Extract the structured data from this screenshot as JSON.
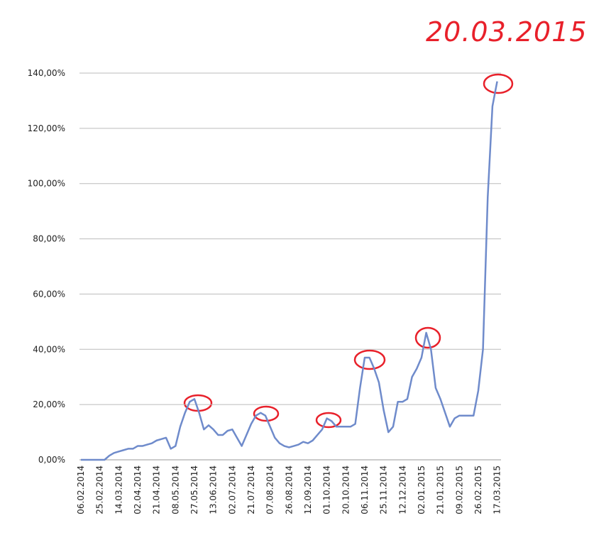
{
  "chart_data": {
    "type": "line",
    "annotation": "20.03.2015",
    "categories": [
      "06.02.2014",
      null,
      null,
      null,
      "25.02.2014",
      null,
      null,
      null,
      "14.03.2014",
      null,
      null,
      null,
      "02.04.2014",
      null,
      null,
      null,
      "21.04.2014",
      null,
      null,
      null,
      "08.05.2014",
      null,
      null,
      null,
      "27.05.2014",
      null,
      null,
      null,
      "13.06.2014",
      null,
      null,
      null,
      "02.07.2014",
      null,
      null,
      null,
      "21.07.2014",
      null,
      null,
      null,
      "07.08.2014",
      null,
      null,
      null,
      "26.08.2014",
      null,
      null,
      null,
      "12.09.2014",
      null,
      null,
      null,
      "01.10.2014",
      null,
      null,
      null,
      "20.10.2014",
      null,
      null,
      null,
      "06.11.2014",
      null,
      null,
      null,
      "25.11.2014",
      null,
      null,
      null,
      "12.12.2014",
      null,
      null,
      null,
      "02.01.2015",
      null,
      null,
      null,
      "21.01.2015",
      null,
      null,
      null,
      "09.02.2015",
      null,
      null,
      null,
      "26.02.2015",
      null,
      null,
      null,
      "17.03.2015"
    ],
    "series": [
      {
        "color": "#6f8bcb",
        "values": [
          0,
          0,
          0,
          0,
          0,
          0,
          1.5,
          2.5,
          3,
          3.5,
          4,
          4,
          5,
          5,
          5.5,
          6,
          7,
          7.5,
          8,
          4,
          5,
          12,
          17,
          21,
          22,
          17,
          11,
          12.5,
          11,
          9,
          9,
          10.5,
          11,
          8,
          5,
          9,
          13,
          16,
          17,
          16,
          12,
          8,
          6,
          5,
          4.5,
          5,
          5.5,
          6.5,
          6,
          7,
          9,
          11,
          15,
          14,
          12,
          12,
          12,
          12,
          13,
          26,
          37,
          37,
          33,
          28,
          18,
          10,
          12,
          21,
          21,
          22,
          30,
          33,
          37,
          46,
          40,
          26,
          22,
          17,
          12,
          15,
          16,
          16,
          16,
          16,
          25,
          40,
          95,
          128,
          137
        ]
      }
    ],
    "ylim": [
      0,
      140
    ],
    "yticks": [
      {
        "value": 0,
        "label": "0,00%"
      },
      {
        "value": 20,
        "label": "20,00%"
      },
      {
        "value": 40,
        "label": "40,00%"
      },
      {
        "value": 60,
        "label": "60,00%"
      },
      {
        "value": 80,
        "label": "80,00%"
      },
      {
        "value": 100,
        "label": "100,00%"
      },
      {
        "value": 120,
        "label": "120,00%"
      },
      {
        "value": 140,
        "label": "140,00%"
      }
    ],
    "grid": true
  }
}
